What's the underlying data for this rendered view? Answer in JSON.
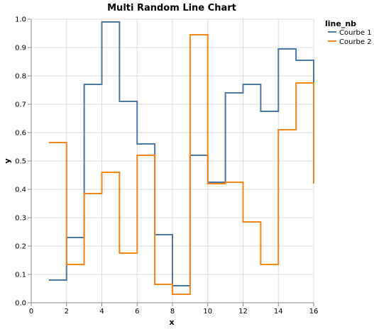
{
  "chart_data": {
    "type": "line",
    "interpolation": "step-after",
    "title": "Multi Random Line Chart",
    "xlabel": "x",
    "ylabel": "y",
    "xlim": [
      0,
      16
    ],
    "ylim": [
      0,
      1
    ],
    "xticks": [
      "0",
      "2",
      "4",
      "6",
      "8",
      "10",
      "12",
      "14",
      "16"
    ],
    "yticks": [
      "0.0",
      "0.1",
      "0.2",
      "0.3",
      "0.4",
      "0.5",
      "0.6",
      "0.7",
      "0.8",
      "0.9",
      "1.0"
    ],
    "grid": true,
    "legend": {
      "title": "line_nb",
      "placement": "top-right"
    },
    "x": [
      1,
      2,
      3,
      4,
      5,
      6,
      7,
      8,
      9,
      10,
      11,
      12,
      13,
      14,
      15,
      16
    ],
    "series": [
      {
        "name": "Courbe 1",
        "color": "#4c78a8",
        "values": [
          0.08,
          0.23,
          0.77,
          0.99,
          0.71,
          0.56,
          0.24,
          0.06,
          0.52,
          0.425,
          0.74,
          0.77,
          0.675,
          0.895,
          0.855,
          0.77
        ]
      },
      {
        "name": "Courbe 2",
        "color": "#f58518",
        "values": [
          0.565,
          0.135,
          0.385,
          0.46,
          0.175,
          0.52,
          0.065,
          0.03,
          0.945,
          0.42,
          0.425,
          0.285,
          0.135,
          0.61,
          0.775,
          0.42
        ]
      }
    ]
  }
}
